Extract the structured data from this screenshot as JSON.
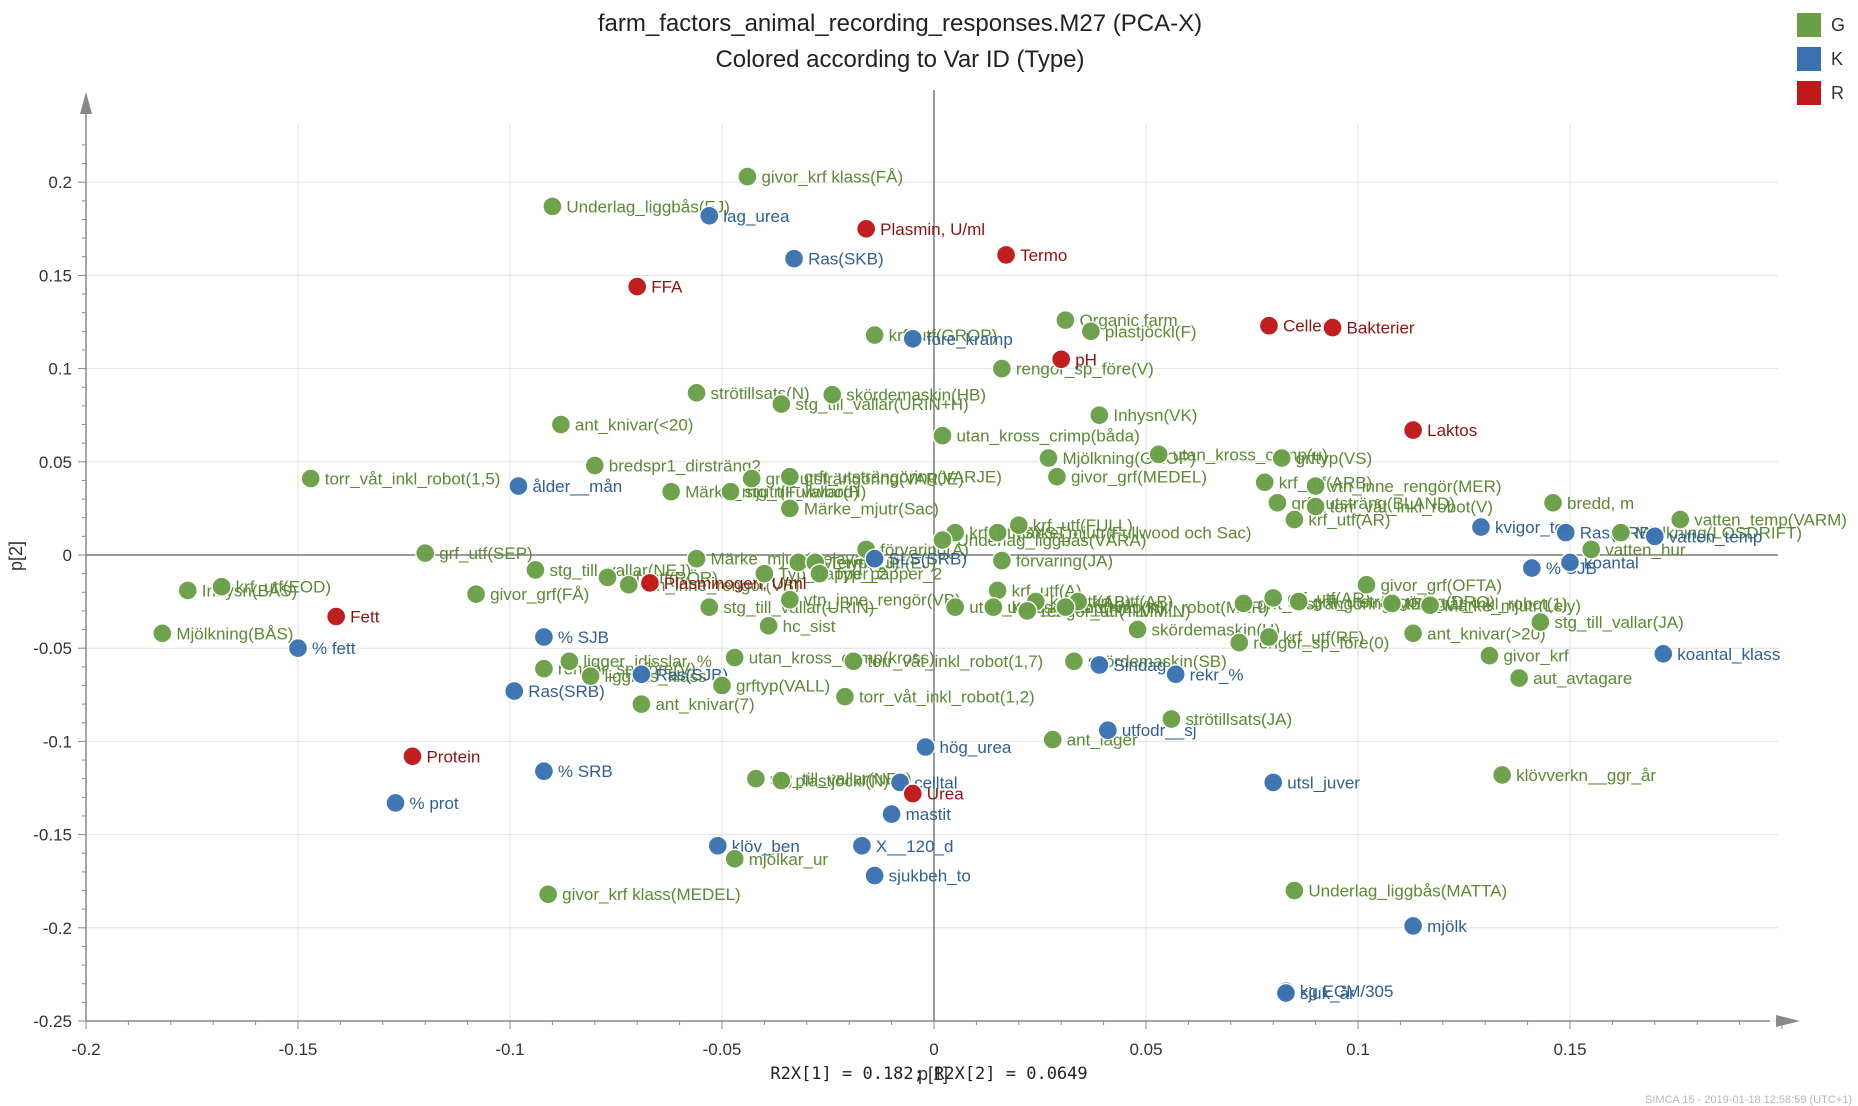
{
  "chart_data": {
    "type": "scatter",
    "title": "farm_factors_animal_recording_responses.M27 (PCA-X)",
    "subtitle": "Colored according to Var ID (Type)",
    "xlabel": "p[1]",
    "ylabel": "p[2]",
    "footer": "R2X[1] = 0.182; R2X[2] = 0.0649",
    "watermark": "SIMCA 15 - 2019-01-18 12:58:59 (UTC+1)",
    "xlim": [
      -0.2,
      0.2
    ],
    "ylim": [
      -0.25,
      0.2
    ],
    "xticks": [
      -0.2,
      -0.15,
      -0.1,
      -0.05,
      0,
      0.05,
      0.1,
      0.15
    ],
    "yticks": [
      -0.25,
      -0.2,
      -0.15,
      -0.1,
      -0.05,
      0,
      0.05,
      0.1,
      0.15,
      0.2
    ],
    "xtick_labels": [
      "-0.2",
      "-0.15",
      "-0.1",
      "-0.05",
      "0",
      "0.05",
      "0.1",
      "0.15"
    ],
    "ytick_labels": [
      "-0.25",
      "-0.2",
      "-0.15",
      "-0.1",
      "-0.05",
      "0",
      "0.05",
      "0.1",
      "0.15",
      "0.2"
    ],
    "grid": true,
    "legend_position": "top-right",
    "groups": [
      {
        "name": "G",
        "color": "#6a9f48",
        "label_color": "#5a8a32"
      },
      {
        "name": "K",
        "color": "#3a72b0",
        "label_color": "#2f5f94"
      },
      {
        "name": "R",
        "color": "#c01818",
        "label_color": "#8f1212"
      }
    ],
    "series": [
      {
        "name": "G",
        "points": [
          {
            "x": -0.044,
            "y": 0.203,
            "label": "givor_krf klass(FÅ)"
          },
          {
            "x": -0.09,
            "y": 0.187,
            "label": "Underlag_liggbås(EJ)"
          },
          {
            "x": 0.031,
            "y": 0.126,
            "label": "Organic farm"
          },
          {
            "x": 0.037,
            "y": 0.12,
            "label": "plastjöckl(F)"
          },
          {
            "x": -0.014,
            "y": 0.118,
            "label": "krf_utf(GROP)"
          },
          {
            "x": 0.016,
            "y": 0.1,
            "label": "rengör_sp_före(V)"
          },
          {
            "x": -0.056,
            "y": 0.087,
            "label": "strötillsats(N)"
          },
          {
            "x": -0.024,
            "y": 0.086,
            "label": "skördemaskin(HB)"
          },
          {
            "x": -0.036,
            "y": 0.081,
            "label": "stg_till_vallar(URIN+H)"
          },
          {
            "x": 0.039,
            "y": 0.075,
            "label": "Inhysn(VK)"
          },
          {
            "x": -0.088,
            "y": 0.07,
            "label": "ant_knivar(<20)"
          },
          {
            "x": 0.002,
            "y": 0.064,
            "label": "utan_kross_crimp(båda)"
          },
          {
            "x": 0.053,
            "y": 0.054,
            "label": "utan_kross_crimp(u)"
          },
          {
            "x": 0.082,
            "y": 0.052,
            "label": "grftyp(VS)"
          },
          {
            "x": 0.027,
            "y": 0.052,
            "label": "Mjölkning(GROP)"
          },
          {
            "x": -0.08,
            "y": 0.048,
            "label": "bredspr1_dirsträng2"
          },
          {
            "x": -0.034,
            "y": 0.042,
            "label": "grft_utsträngöring(VARJE)"
          },
          {
            "x": -0.043,
            "y": 0.041,
            "label": "grft_utsträngöring(VARJE)"
          },
          {
            "x": 0.029,
            "y": 0.042,
            "label": "givor_grf(MEDEL)"
          },
          {
            "x": -0.147,
            "y": 0.041,
            "label": "torr_våt_inkl_robot(1,5)"
          },
          {
            "x": 0.078,
            "y": 0.039,
            "label": "krf_utf(ARB)"
          },
          {
            "x": 0.09,
            "y": 0.037,
            "label": "vtn_inne_rengör(MER)"
          },
          {
            "x": -0.062,
            "y": 0.034,
            "label": "Märke_mjutr(Fullwood)"
          },
          {
            "x": -0.048,
            "y": 0.034,
            "label": "stg_till_vallar(H)"
          },
          {
            "x": 0.081,
            "y": 0.028,
            "label": "grft_utsträng(BLAND)"
          },
          {
            "x": 0.09,
            "y": 0.026,
            "label": "torr_våt_inkl_robot(V)"
          },
          {
            "x": -0.034,
            "y": 0.025,
            "label": "Märke_mjutr(Sac)"
          },
          {
            "x": 0.146,
            "y": 0.028,
            "label": "bredd, m"
          },
          {
            "x": 0.085,
            "y": 0.019,
            "label": "krf_utf(AR)"
          },
          {
            "x": 0.176,
            "y": 0.019,
            "label": "vatten_temp(VARM)"
          },
          {
            "x": 0.02,
            "y": 0.016,
            "label": "krf_utf(FULL)"
          },
          {
            "x": 0.005,
            "y": 0.012,
            "label": "krf_utf(SYST)"
          },
          {
            "x": 0.015,
            "y": 0.012,
            "label": "Märke_mjutr(Fullwood och Sac)"
          },
          {
            "x": 0.002,
            "y": 0.008,
            "label": "Underlag_liggbås(VÅRA)"
          },
          {
            "x": 0.155,
            "y": 0.003,
            "label": "vatten_hur"
          },
          {
            "x": 0.162,
            "y": 0.012,
            "label": "Mjölkning(LÖSDRIFT)"
          },
          {
            "x": -0.12,
            "y": 0.001,
            "label": "grf_utf(SEP)"
          },
          {
            "x": -0.016,
            "y": 0.003,
            "label": "förvaring(A)"
          },
          {
            "x": -0.056,
            "y": -0.002,
            "label": "Märke_mjutr(Delaval)"
          },
          {
            "x": -0.032,
            "y": -0.004,
            "label": "Kyl_typ(EJ)"
          },
          {
            "x": -0.028,
            "y": -0.004,
            "label": "Termo_utf(EJ)"
          },
          {
            "x": 0.016,
            "y": -0.003,
            "label": "förvaring(JA)"
          },
          {
            "x": -0.094,
            "y": -0.008,
            "label": "stg_till_vallar(NEJ)"
          },
          {
            "x": -0.077,
            "y": -0.012,
            "label": "krf_utf(RÖR)"
          },
          {
            "x": -0.072,
            "y": -0.016,
            "label": "vtn_inne_rengör(VB)"
          },
          {
            "x": -0.04,
            "y": -0.01,
            "label": "Typ_papper_2"
          },
          {
            "x": -0.027,
            "y": -0.01,
            "label": "Typ_papper_2"
          },
          {
            "x": -0.176,
            "y": -0.019,
            "label": "Inhysn(BÅS)"
          },
          {
            "x": -0.168,
            "y": -0.017,
            "label": "krf_utf(EOD)"
          },
          {
            "x": -0.108,
            "y": -0.021,
            "label": "givor_grf(FÅ)"
          },
          {
            "x": 0.102,
            "y": -0.016,
            "label": "givor_grf(OFTA)"
          },
          {
            "x": 0.015,
            "y": -0.019,
            "label": "krf_utf(A)"
          },
          {
            "x": 0.024,
            "y": -0.025,
            "label": "krf_utf(AB)"
          },
          {
            "x": 0.034,
            "y": -0.025,
            "label": "krf_utf(AB)"
          },
          {
            "x": -0.034,
            "y": -0.024,
            "label": "vtn_inne_rengör(VB)"
          },
          {
            "x": 0.005,
            "y": -0.028,
            "label": "utan_kross_crimp(K)"
          },
          {
            "x": 0.014,
            "y": -0.028,
            "label": "utan_kross_crimp(K)"
          },
          {
            "x": 0.022,
            "y": -0.03,
            "label": "rengör_utf(TIMMIN)"
          },
          {
            "x": 0.031,
            "y": -0.028,
            "label": "torr_våt_inkl_robot(MER)"
          },
          {
            "x": 0.073,
            "y": -0.026,
            "label": "grft_utsträngöring(MER)"
          },
          {
            "x": 0.08,
            "y": -0.023,
            "label": "grf_utf(AR)"
          },
          {
            "x": 0.086,
            "y": -0.025,
            "label": "grft_utsträngöring(DRO)"
          },
          {
            "x": 0.108,
            "y": -0.026,
            "label": "torr_våt_inkl_robot(1)"
          },
          {
            "x": 0.117,
            "y": -0.027,
            "label": "Märke_mjutr(Lely)"
          },
          {
            "x": -0.053,
            "y": -0.028,
            "label": "stg_till_vallar(URIN)"
          },
          {
            "x": 0.048,
            "y": -0.04,
            "label": "skördemaskin(H)"
          },
          {
            "x": 0.072,
            "y": -0.047,
            "label": "rengör_sp_före(0)"
          },
          {
            "x": 0.079,
            "y": -0.044,
            "label": "krf_utf(RF)"
          },
          {
            "x": -0.039,
            "y": -0.038,
            "label": "hc_sist"
          },
          {
            "x": 0.143,
            "y": -0.036,
            "label": "stg_till_vallar(JA)"
          },
          {
            "x": 0.113,
            "y": -0.042,
            "label": "ant_knivar(>20)"
          },
          {
            "x": 0.131,
            "y": -0.054,
            "label": "givor_krf"
          },
          {
            "x": 0.138,
            "y": -0.066,
            "label": "aut_avtagare"
          },
          {
            "x": -0.047,
            "y": -0.055,
            "label": "utan_kross_crimp(kross)"
          },
          {
            "x": -0.019,
            "y": -0.057,
            "label": "torr_våt_inkl_robot(1,7)"
          },
          {
            "x": -0.086,
            "y": -0.057,
            "label": "ligger_idisslar_%"
          },
          {
            "x": -0.092,
            "y": -0.061,
            "label": "rengör_sp_före(V)"
          },
          {
            "x": -0.081,
            "y": -0.065,
            "label": "liggbås_klass"
          },
          {
            "x": 0.033,
            "y": -0.057,
            "label": "skördemaskin(SB)"
          },
          {
            "x": -0.05,
            "y": -0.07,
            "label": "grftyp(VALL)"
          },
          {
            "x": -0.021,
            "y": -0.076,
            "label": "torr_våt_inkl_robot(1,2)"
          },
          {
            "x": -0.069,
            "y": -0.08,
            "label": "ant_knivar(7)"
          },
          {
            "x": 0.056,
            "y": -0.088,
            "label": "strötillsats(JA)"
          },
          {
            "x": 0.028,
            "y": -0.099,
            "label": "ant_lager"
          },
          {
            "x": -0.042,
            "y": -0.12,
            "label": "stg_till_vallar(NEJ)"
          },
          {
            "x": -0.036,
            "y": -0.121,
            "label": "plastjöckl(N)"
          },
          {
            "x": 0.134,
            "y": -0.118,
            "label": "klövverkn__ggr_år"
          },
          {
            "x": -0.047,
            "y": -0.163,
            "label": "mjölkar_ur"
          },
          {
            "x": -0.091,
            "y": -0.182,
            "label": "givor_krf klass(MEDEL)"
          },
          {
            "x": 0.085,
            "y": -0.18,
            "label": "Underlag_liggbås(MATTA)"
          },
          {
            "x": -0.182,
            "y": -0.042,
            "label": "Mjölkning(BÅS)"
          }
        ]
      },
      {
        "name": "K",
        "points": [
          {
            "x": -0.053,
            "y": 0.182,
            "label": "lag_urea"
          },
          {
            "x": -0.033,
            "y": 0.159,
            "label": "Ras(SKB)"
          },
          {
            "x": -0.005,
            "y": 0.116,
            "label": "före_kramp"
          },
          {
            "x": -0.098,
            "y": 0.037,
            "label": "ålder__mån"
          },
          {
            "x": 0.129,
            "y": 0.015,
            "label": "kvigor_tot"
          },
          {
            "x": 0.149,
            "y": 0.012,
            "label": "Ras(SRB)"
          },
          {
            "x": 0.17,
            "y": 0.01,
            "label": "vatten_temp"
          },
          {
            "x": -0.014,
            "y": -0.002,
            "label": "SLS(SRB)"
          },
          {
            "x": 0.141,
            "y": -0.007,
            "label": "% SJB"
          },
          {
            "x": 0.15,
            "y": -0.004,
            "label": "koantal"
          },
          {
            "x": -0.092,
            "y": -0.044,
            "label": "% SJB"
          },
          {
            "x": -0.15,
            "y": -0.05,
            "label": "% fett"
          },
          {
            "x": 0.172,
            "y": -0.053,
            "label": "koantal_klass"
          },
          {
            "x": 0.039,
            "y": -0.059,
            "label": "Sindag"
          },
          {
            "x": 0.057,
            "y": -0.064,
            "label": "rekr_%"
          },
          {
            "x": -0.069,
            "y": -0.064,
            "label": "Ras(SJB)"
          },
          {
            "x": -0.099,
            "y": -0.073,
            "label": "Ras(SRB)"
          },
          {
            "x": 0.041,
            "y": -0.094,
            "label": "utfodr__sj"
          },
          {
            "x": -0.002,
            "y": -0.103,
            "label": "hög_urea"
          },
          {
            "x": -0.092,
            "y": -0.116,
            "label": "% SRB"
          },
          {
            "x": 0.08,
            "y": -0.122,
            "label": "utsl_juver"
          },
          {
            "x": -0.008,
            "y": -0.122,
            "label": "celltal"
          },
          {
            "x": -0.127,
            "y": -0.133,
            "label": "% prot"
          },
          {
            "x": -0.01,
            "y": -0.139,
            "label": "mastit"
          },
          {
            "x": -0.051,
            "y": -0.156,
            "label": "klöv_ben"
          },
          {
            "x": -0.017,
            "y": -0.156,
            "label": "X__120_d"
          },
          {
            "x": -0.014,
            "y": -0.172,
            "label": "sjukbeh_to"
          },
          {
            "x": 0.113,
            "y": -0.199,
            "label": "mjölk"
          },
          {
            "x": 0.083,
            "y": -0.234,
            "label": "kg ECM/305"
          },
          {
            "x": 0.083,
            "y": -0.235,
            "label": "sjuk_år"
          }
        ]
      },
      {
        "name": "R",
        "points": [
          {
            "x": -0.016,
            "y": 0.175,
            "label": "Plasmin, U/ml"
          },
          {
            "x": 0.017,
            "y": 0.161,
            "label": "Termo"
          },
          {
            "x": -0.07,
            "y": 0.144,
            "label": "FFA"
          },
          {
            "x": 0.079,
            "y": 0.123,
            "label": "Celler"
          },
          {
            "x": 0.094,
            "y": 0.122,
            "label": "Bakterier"
          },
          {
            "x": 0.03,
            "y": 0.105,
            "label": "pH"
          },
          {
            "x": 0.113,
            "y": 0.067,
            "label": "Laktos"
          },
          {
            "x": -0.067,
            "y": -0.015,
            "label": "Plasminogen, U/ml"
          },
          {
            "x": -0.141,
            "y": -0.033,
            "label": "Fett"
          },
          {
            "x": -0.123,
            "y": -0.108,
            "label": "Protein"
          },
          {
            "x": -0.005,
            "y": -0.128,
            "label": "Urea"
          }
        ]
      }
    ]
  }
}
